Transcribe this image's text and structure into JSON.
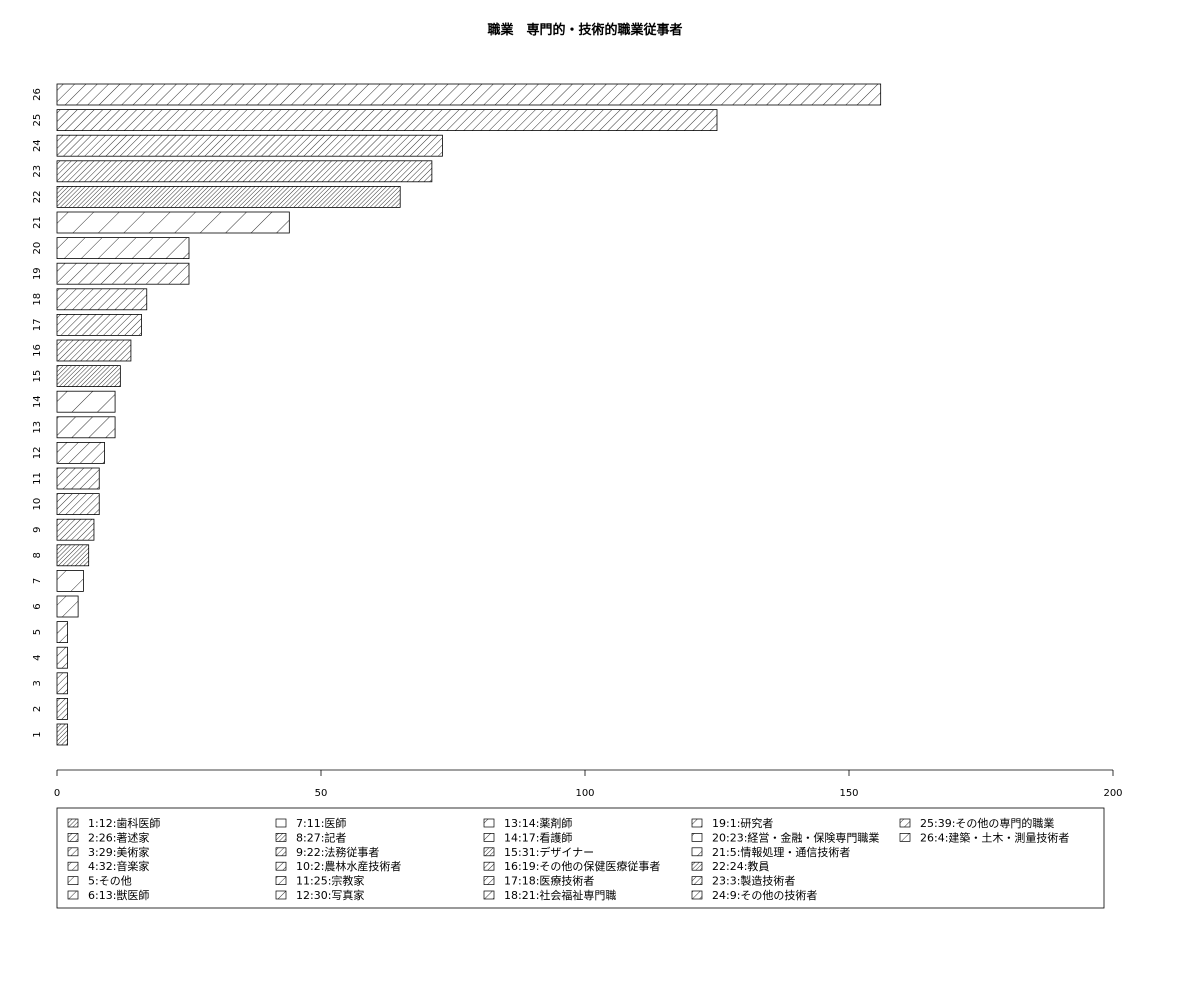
{
  "chart_data": {
    "type": "bar",
    "orientation": "horizontal",
    "title": "職業　専門的・技術的職業従事者",
    "xlabel": "",
    "ylabel": "",
    "xlim": [
      0,
      200
    ],
    "x_ticks": [
      0,
      50,
      100,
      150,
      200
    ],
    "categories": [
      "1",
      "2",
      "3",
      "4",
      "5",
      "6",
      "7",
      "8",
      "9",
      "10",
      "11",
      "12",
      "13",
      "14",
      "15",
      "16",
      "17",
      "18",
      "19",
      "20",
      "21",
      "22",
      "23",
      "24",
      "25",
      "26"
    ],
    "values": [
      2,
      2,
      2,
      2,
      2,
      4,
      5,
      6,
      7,
      8,
      8,
      9,
      11,
      11,
      12,
      14,
      16,
      17,
      25,
      25,
      44,
      65,
      71,
      73,
      125,
      156
    ],
    "fill": "hatched",
    "grid": false,
    "legend_position": "bottom",
    "legend": [
      "1:12:歯科医師",
      "2:26:著述家",
      "3:29:美術家",
      "4:32:音楽家",
      "5:その他",
      "6:13:獣医師",
      "7:11:医師",
      "8:27:記者",
      "9:22:法務従事者",
      "10:2:農林水産技術者",
      "11:25:宗教家",
      "12:30:写真家",
      "13:14:薬剤師",
      "14:17:看護師",
      "15:31:デザイナー",
      "16:19:その他の保健医療従事者",
      "17:18:医療技術者",
      "18:21:社会福祉専門職",
      "19:1:研究者",
      "20:23:経営・金融・保険専門職業",
      "21:5:情報処理・通信技術者",
      "22:24:教員",
      "23:3:製造技術者",
      "24:9:その他の技術者",
      "25:39:その他の専門的職業",
      "26:4:建築・土木・測量技術者"
    ]
  }
}
